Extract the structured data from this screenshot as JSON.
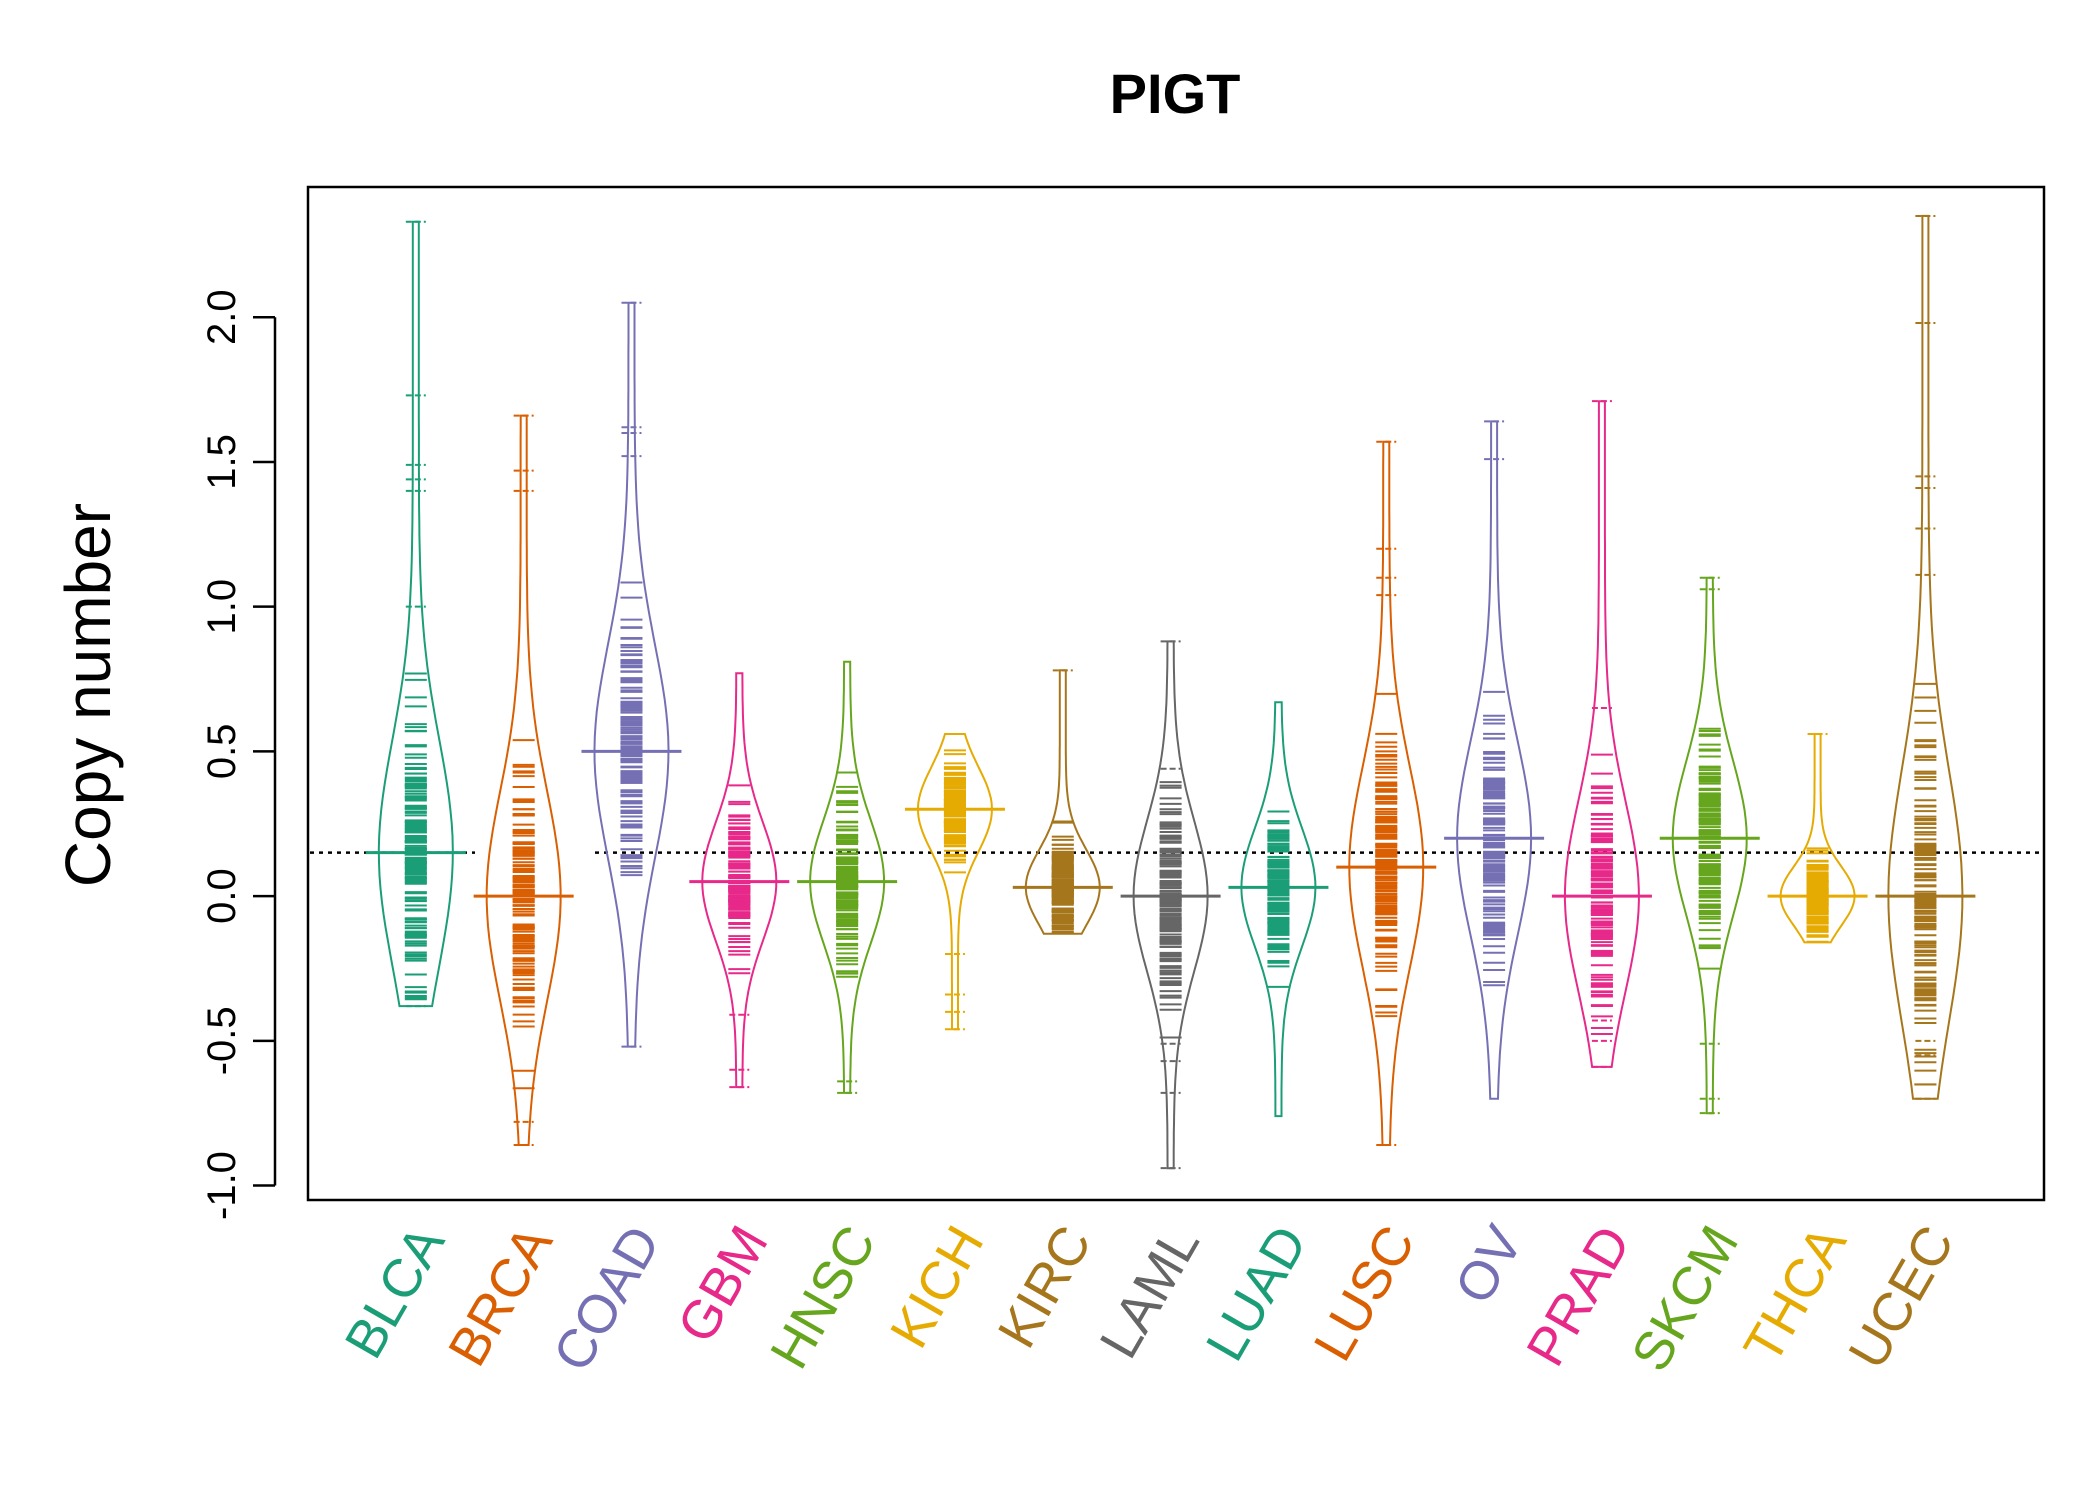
{
  "chart_data": {
    "type": "scatter",
    "title": "PIGT",
    "xlabel": "",
    "ylabel": "Copy number",
    "ylim": [
      -1.05,
      2.45
    ],
    "yticks": [
      "-1.0",
      "-0.5",
      "0.0",
      "0.5",
      "1.0",
      "1.5",
      "2.0"
    ],
    "reference_line": 0.15,
    "legend": "none",
    "grid": false,
    "categories": [
      "BLCA",
      "BRCA",
      "COAD",
      "GBM",
      "HNSC",
      "KICH",
      "KIRC",
      "LAML",
      "LUAD",
      "LUSC",
      "OV",
      "PRAD",
      "SKCM",
      "THCA",
      "UCEC"
    ],
    "colors": [
      "#1B9E77",
      "#D95F02",
      "#7570B3",
      "#E7298A",
      "#66A61E",
      "#E6AB02",
      "#A6761D",
      "#666666",
      "#1B9E77",
      "#D95F02",
      "#7570B3",
      "#E7298A",
      "#66A61E",
      "#E6AB02",
      "#A6761D"
    ],
    "series": [
      {
        "category": "BLCA",
        "min": -0.38,
        "max": 2.33,
        "median": 0.15,
        "outliers": [
          2.33,
          1.73,
          1.49,
          1.44,
          1.4,
          1.0,
          -0.38
        ]
      },
      {
        "category": "BRCA",
        "min": -0.86,
        "max": 1.66,
        "median": 0.0,
        "outliers": [
          1.66,
          1.47,
          1.4,
          -0.78,
          -0.86
        ]
      },
      {
        "category": "COAD",
        "min": -0.52,
        "max": 2.05,
        "median": 0.5,
        "outliers": [
          2.05,
          1.62,
          1.6,
          1.52,
          -0.52
        ]
      },
      {
        "category": "GBM",
        "min": -0.66,
        "max": 0.77,
        "median": 0.05,
        "outliers": [
          -0.41,
          -0.6,
          -0.66
        ]
      },
      {
        "category": "HNSC",
        "min": -0.68,
        "max": 0.81,
        "median": 0.05,
        "outliers": [
          -0.64,
          -0.68
        ]
      },
      {
        "category": "KICH",
        "min": -0.46,
        "max": 0.56,
        "median": 0.3,
        "outliers": [
          -0.2,
          -0.34,
          -0.4,
          -0.46
        ]
      },
      {
        "category": "KIRC",
        "min": -0.13,
        "max": 0.78,
        "median": 0.03,
        "outliers": [
          0.78
        ]
      },
      {
        "category": "LAML",
        "min": -0.94,
        "max": 0.88,
        "median": 0.0,
        "outliers": [
          0.88,
          0.44,
          -0.51,
          -0.57,
          -0.68,
          -0.94
        ]
      },
      {
        "category": "LUAD",
        "min": -0.76,
        "max": 0.67,
        "median": 0.03,
        "outliers": []
      },
      {
        "category": "LUSC",
        "min": -0.86,
        "max": 1.57,
        "median": 0.1,
        "outliers": [
          1.57,
          1.2,
          1.1,
          1.04,
          -0.86
        ]
      },
      {
        "category": "OV",
        "min": -0.7,
        "max": 1.64,
        "median": 0.2,
        "outliers": [
          1.64,
          1.51
        ]
      },
      {
        "category": "PRAD",
        "min": -0.59,
        "max": 1.71,
        "median": 0.0,
        "outliers": [
          1.71,
          0.65,
          -0.43,
          -0.5,
          -0.59
        ]
      },
      {
        "category": "SKCM",
        "min": -0.75,
        "max": 1.1,
        "median": 0.2,
        "outliers": [
          1.1,
          1.06,
          -0.51,
          -0.7,
          -0.75
        ]
      },
      {
        "category": "THCA",
        "min": -0.16,
        "max": 0.56,
        "median": 0.0,
        "outliers": [
          0.56
        ]
      },
      {
        "category": "UCEC",
        "min": -0.7,
        "max": 2.35,
        "median": 0.0,
        "outliers": [
          2.35,
          1.98,
          1.45,
          1.41,
          1.27,
          1.11,
          -0.5,
          -0.55,
          -0.7
        ]
      }
    ]
  }
}
